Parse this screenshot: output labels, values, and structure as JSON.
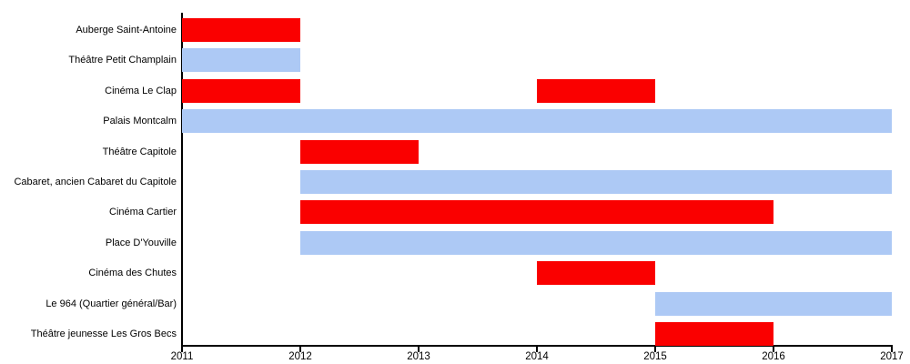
{
  "chart_data": {
    "type": "bar",
    "subtype": "gantt",
    "title": "",
    "xlabel": "",
    "ylabel": "",
    "xlim": [
      2011,
      2017
    ],
    "x_ticks": [
      "2011",
      "2012",
      "2013",
      "2014",
      "2015",
      "2016",
      "2017"
    ],
    "grid": false,
    "legend": false,
    "colors": {
      "red": "#FA0000",
      "blue": "#ADC9F5",
      "axis": "#000000"
    },
    "categories": [
      "Auberge Saint-Antoine",
      "Théâtre Petit Champlain",
      "Cinéma Le Clap",
      "Palais Montcalm",
      "Théâtre Capitole",
      "Cabaret, ancien Cabaret du Capitole",
      "Cinéma Cartier",
      "Place D'Youville",
      "Cinéma des Chutes",
      "Le 964 (Quartier général/Bar)",
      "Théâtre jeunesse Les Gros Becs"
    ],
    "rows": [
      {
        "label": "Auberge Saint-Antoine",
        "bars": [
          {
            "start": 2011,
            "end": 2012,
            "color": "red"
          }
        ]
      },
      {
        "label": "Théâtre Petit Champlain",
        "bars": [
          {
            "start": 2011,
            "end": 2012,
            "color": "blue"
          }
        ]
      },
      {
        "label": "Cinéma Le Clap",
        "bars": [
          {
            "start": 2011,
            "end": 2012,
            "color": "red"
          },
          {
            "start": 2014,
            "end": 2015,
            "color": "red"
          }
        ]
      },
      {
        "label": "Palais Montcalm",
        "bars": [
          {
            "start": 2011,
            "end": 2017,
            "color": "blue"
          }
        ]
      },
      {
        "label": "Théâtre Capitole",
        "bars": [
          {
            "start": 2012,
            "end": 2013,
            "color": "red"
          }
        ]
      },
      {
        "label": "Cabaret, ancien Cabaret du Capitole",
        "bars": [
          {
            "start": 2012,
            "end": 2017,
            "color": "blue"
          }
        ]
      },
      {
        "label": "Cinéma Cartier",
        "bars": [
          {
            "start": 2012,
            "end": 2016,
            "color": "red"
          }
        ]
      },
      {
        "label": "Place D'Youville",
        "bars": [
          {
            "start": 2012,
            "end": 2017,
            "color": "blue"
          }
        ]
      },
      {
        "label": "Cinéma des Chutes",
        "bars": [
          {
            "start": 2014,
            "end": 2015,
            "color": "red"
          }
        ]
      },
      {
        "label": "Le 964 (Quartier général/Bar)",
        "bars": [
          {
            "start": 2015,
            "end": 2017,
            "color": "blue"
          }
        ]
      },
      {
        "label": "Théâtre jeunesse Les Gros Becs",
        "bars": [
          {
            "start": 2015,
            "end": 2016,
            "color": "red"
          }
        ]
      }
    ]
  }
}
